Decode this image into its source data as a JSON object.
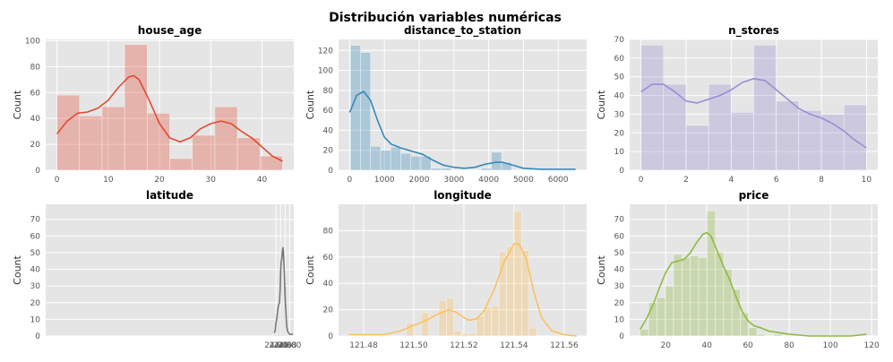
{
  "figure": {
    "title": "Distribución variables numéricas"
  },
  "colors": {
    "panel_bg": "#e5e5e5",
    "grid": "#ffffff",
    "tick_text": "#555555",
    "title_text": "#000000"
  },
  "chart_data": [
    {
      "type": "histogram",
      "title": "house_age",
      "xlabel": "",
      "ylabel": "Count",
      "color": "#e24a33",
      "xlim": [
        -2.2,
        46.2
      ],
      "ylim": [
        0,
        101
      ],
      "xticks": [
        0,
        10,
        20,
        30,
        40
      ],
      "yticks": [
        0,
        20,
        40,
        60,
        80,
        100
      ],
      "bins": [
        {
          "x0": 0,
          "x1": 4.4,
          "count": 58
        },
        {
          "x0": 4.4,
          "x1": 8.8,
          "count": 42
        },
        {
          "x0": 8.8,
          "x1": 13.2,
          "count": 49
        },
        {
          "x0": 13.2,
          "x1": 17.6,
          "count": 97
        },
        {
          "x0": 17.6,
          "x1": 22.0,
          "count": 44
        },
        {
          "x0": 22.0,
          "x1": 26.4,
          "count": 9
        },
        {
          "x0": 26.4,
          "x1": 30.8,
          "count": 27
        },
        {
          "x0": 30.8,
          "x1": 35.2,
          "count": 49
        },
        {
          "x0": 35.2,
          "x1": 39.6,
          "count": 25
        },
        {
          "x0": 39.6,
          "x1": 44.0,
          "count": 11
        }
      ],
      "kde": [
        [
          0,
          28
        ],
        [
          2,
          38
        ],
        [
          4,
          44
        ],
        [
          6,
          45
        ],
        [
          8,
          48
        ],
        [
          10,
          54
        ],
        [
          12,
          64
        ],
        [
          14,
          72
        ],
        [
          15,
          73
        ],
        [
          16,
          70
        ],
        [
          18,
          54
        ],
        [
          20,
          36
        ],
        [
          22,
          25
        ],
        [
          24,
          22
        ],
        [
          26,
          25
        ],
        [
          28,
          32
        ],
        [
          30,
          36
        ],
        [
          32,
          38
        ],
        [
          34,
          36
        ],
        [
          36,
          30
        ],
        [
          38,
          25
        ],
        [
          40,
          18
        ],
        [
          42,
          11
        ],
        [
          44,
          7
        ]
      ]
    },
    {
      "type": "histogram",
      "title": "distance_to_station",
      "xlabel": "",
      "ylabel": "Count",
      "color": "#348abd",
      "xlim": [
        -320,
        6820
      ],
      "ylim": [
        0,
        131
      ],
      "xticks": [
        0,
        1000,
        2000,
        3000,
        4000,
        5000,
        6000
      ],
      "yticks": [
        0,
        20,
        40,
        60,
        80,
        100,
        120
      ],
      "bins": [
        {
          "x0": 23,
          "x1": 312,
          "count": 125
        },
        {
          "x0": 312,
          "x1": 600,
          "count": 118
        },
        {
          "x0": 600,
          "x1": 890,
          "count": 24
        },
        {
          "x0": 890,
          "x1": 1180,
          "count": 20
        },
        {
          "x0": 1180,
          "x1": 1470,
          "count": 23
        },
        {
          "x0": 1470,
          "x1": 1760,
          "count": 17
        },
        {
          "x0": 1760,
          "x1": 2050,
          "count": 14
        },
        {
          "x0": 2050,
          "x1": 2340,
          "count": 14
        },
        {
          "x0": 2340,
          "x1": 2630,
          "count": 2
        },
        {
          "x0": 2630,
          "x1": 2920,
          "count": 2
        },
        {
          "x0": 2920,
          "x1": 3210,
          "count": 0
        },
        {
          "x0": 3210,
          "x1": 3500,
          "count": 0
        },
        {
          "x0": 3500,
          "x1": 3790,
          "count": 0
        },
        {
          "x0": 3790,
          "x1": 4080,
          "count": 2
        },
        {
          "x0": 4080,
          "x1": 4370,
          "count": 18
        },
        {
          "x0": 4370,
          "x1": 4660,
          "count": 8
        },
        {
          "x0": 4660,
          "x1": 6490,
          "count": 0
        }
      ],
      "kde": [
        [
          0,
          58
        ],
        [
          200,
          75
        ],
        [
          400,
          79
        ],
        [
          600,
          70
        ],
        [
          800,
          50
        ],
        [
          1000,
          33
        ],
        [
          1200,
          26
        ],
        [
          1500,
          22
        ],
        [
          1800,
          19
        ],
        [
          2100,
          16
        ],
        [
          2400,
          10
        ],
        [
          2700,
          5
        ],
        [
          3000,
          3
        ],
        [
          3300,
          2
        ],
        [
          3600,
          3
        ],
        [
          3900,
          6
        ],
        [
          4200,
          8
        ],
        [
          4400,
          8
        ],
        [
          4700,
          5
        ],
        [
          5000,
          2
        ],
        [
          5500,
          1
        ],
        [
          6000,
          1
        ],
        [
          6500,
          1
        ]
      ]
    },
    {
      "type": "histogram",
      "title": "n_stores",
      "xlabel": "",
      "ylabel": "Count",
      "color": "#988ed5",
      "xlim": [
        -0.5,
        10.5
      ],
      "ylim": [
        0,
        70
      ],
      "xticks": [
        0,
        2,
        4,
        6,
        8,
        10
      ],
      "yticks": [
        0,
        10,
        20,
        30,
        40,
        50,
        60,
        70
      ],
      "bins": [
        {
          "x0": 0,
          "x1": 1,
          "count": 67
        },
        {
          "x0": 1,
          "x1": 2,
          "count": 46
        },
        {
          "x0": 2,
          "x1": 3,
          "count": 24
        },
        {
          "x0": 3,
          "x1": 4,
          "count": 46
        },
        {
          "x0": 4,
          "x1": 5,
          "count": 31
        },
        {
          "x0": 5,
          "x1": 6,
          "count": 67
        },
        {
          "x0": 6,
          "x1": 7,
          "count": 37
        },
        {
          "x0": 7,
          "x1": 8,
          "count": 32
        },
        {
          "x0": 8,
          "x1": 9,
          "count": 30
        },
        {
          "x0": 9,
          "x1": 10,
          "count": 35
        }
      ],
      "kde": [
        [
          0,
          42
        ],
        [
          0.5,
          46
        ],
        [
          1,
          46
        ],
        [
          1.5,
          42
        ],
        [
          2,
          37
        ],
        [
          2.5,
          36
        ],
        [
          3,
          38
        ],
        [
          3.5,
          40
        ],
        [
          4,
          43
        ],
        [
          4.5,
          47
        ],
        [
          5,
          49
        ],
        [
          5.5,
          48
        ],
        [
          6,
          43
        ],
        [
          6.5,
          38
        ],
        [
          7,
          33
        ],
        [
          7.5,
          30
        ],
        [
          8,
          28
        ],
        [
          8.5,
          25
        ],
        [
          9,
          21
        ],
        [
          9.5,
          16
        ],
        [
          10,
          12
        ]
      ]
    },
    {
      "type": "histogram",
      "title": "latitude",
      "xlabel": "",
      "ylabel": "Count",
      "color": "#777777",
      "xlim": [
        23.928,
        25.018
      ],
      "ylim": [
        0,
        79
      ],
      "xticks": [
        24.94,
        24.96,
        24.98,
        25.0
      ],
      "yticks": [
        0,
        10,
        20,
        30,
        40,
        50,
        60,
        70
      ],
      "tick_labels": [
        "24.94",
        "24.96",
        "24.98",
        "25.00"
      ],
      "bins": [
        {
          "x0": 24.932,
          "x1": 24.935,
          "count": 1
        },
        {
          "x0": 24.935,
          "x1": 24.938,
          "count": 3
        },
        {
          "x0": 24.938,
          "x1": 24.941,
          "count": 14
        },
        {
          "x0": 24.941,
          "x1": 24.944,
          "count": 2
        },
        {
          "x0": 24.944,
          "x1": 24.947,
          "count": 2
        },
        {
          "x0": 24.947,
          "x1": 24.95,
          "count": 16
        },
        {
          "x0": 24.95,
          "x1": 24.953,
          "count": 22
        },
        {
          "x0": 24.953,
          "x1": 24.956,
          "count": 20
        },
        {
          "x0": 24.956,
          "x1": 24.959,
          "count": 15
        },
        {
          "x0": 24.959,
          "x1": 24.962,
          "count": 57
        },
        {
          "x0": 24.962,
          "x1": 24.965,
          "count": 39
        },
        {
          "x0": 24.965,
          "x1": 24.968,
          "count": 37
        },
        {
          "x0": 24.968,
          "x1": 24.971,
          "count": 75
        },
        {
          "x0": 24.971,
          "x1": 24.974,
          "count": 37
        },
        {
          "x0": 24.974,
          "x1": 24.977,
          "count": 49
        },
        {
          "x0": 24.977,
          "x1": 24.98,
          "count": 13
        },
        {
          "x0": 24.98,
          "x1": 24.983,
          "count": 10
        },
        {
          "x0": 24.983,
          "x1": 24.986,
          "count": 2
        }
      ],
      "kde": [
        [
          24.932,
          2
        ],
        [
          24.936,
          3
        ],
        [
          24.94,
          8
        ],
        [
          24.944,
          11
        ],
        [
          24.948,
          16
        ],
        [
          24.952,
          19
        ],
        [
          24.955,
          20
        ],
        [
          24.958,
          28
        ],
        [
          24.96,
          38
        ],
        [
          24.962,
          44
        ],
        [
          24.965,
          46
        ],
        [
          24.968,
          51
        ],
        [
          24.97,
          53
        ],
        [
          24.972,
          51
        ],
        [
          24.975,
          43
        ],
        [
          24.978,
          32
        ],
        [
          24.981,
          20
        ],
        [
          24.984,
          12
        ],
        [
          24.987,
          6
        ],
        [
          24.99,
          3
        ],
        [
          24.995,
          2
        ],
        [
          25.0,
          1
        ],
        [
          25.008,
          1
        ],
        [
          25.014,
          1
        ]
      ]
    },
    {
      "type": "histogram",
      "title": "longitude",
      "xlabel": "",
      "ylabel": "Count",
      "color": "#fbc15e",
      "xlim": [
        121.47,
        121.569
      ],
      "ylim": [
        0,
        100
      ],
      "xticks": [
        121.48,
        121.5,
        121.52,
        121.54,
        121.56
      ],
      "tick_labels": [
        "121.48",
        "121.50",
        "121.52",
        "121.54",
        "121.56"
      ],
      "yticks": [
        0,
        20,
        40,
        60,
        80
      ],
      "bins": [
        {
          "x0": 121.497,
          "x1": 121.5,
          "count": 10
        },
        {
          "x0": 121.503,
          "x1": 121.506,
          "count": 18
        },
        {
          "x0": 121.51,
          "x1": 121.513,
          "count": 27
        },
        {
          "x0": 121.513,
          "x1": 121.516,
          "count": 29
        },
        {
          "x0": 121.516,
          "x1": 121.519,
          "count": 4
        },
        {
          "x0": 121.519,
          "x1": 121.522,
          "count": 2
        },
        {
          "x0": 121.522,
          "x1": 121.525,
          "count": 2
        },
        {
          "x0": 121.525,
          "x1": 121.528,
          "count": 15
        },
        {
          "x0": 121.528,
          "x1": 121.531,
          "count": 22
        },
        {
          "x0": 121.531,
          "x1": 121.534,
          "count": 23
        },
        {
          "x0": 121.534,
          "x1": 121.537,
          "count": 64
        },
        {
          "x0": 121.537,
          "x1": 121.54,
          "count": 68
        },
        {
          "x0": 121.54,
          "x1": 121.543,
          "count": 95
        },
        {
          "x0": 121.543,
          "x1": 121.546,
          "count": 65
        },
        {
          "x0": 121.546,
          "x1": 121.549,
          "count": 6
        }
      ],
      "kde": [
        [
          121.474,
          1
        ],
        [
          121.48,
          1
        ],
        [
          121.488,
          1
        ],
        [
          121.495,
          4
        ],
        [
          121.5,
          8
        ],
        [
          121.505,
          12
        ],
        [
          121.51,
          17
        ],
        [
          121.514,
          20
        ],
        [
          121.517,
          18
        ],
        [
          121.52,
          14
        ],
        [
          121.522,
          12
        ],
        [
          121.525,
          13
        ],
        [
          121.528,
          19
        ],
        [
          121.532,
          35
        ],
        [
          121.536,
          56
        ],
        [
          121.54,
          70
        ],
        [
          121.542,
          70
        ],
        [
          121.545,
          58
        ],
        [
          121.548,
          33
        ],
        [
          121.551,
          14
        ],
        [
          121.555,
          4
        ],
        [
          121.56,
          1
        ],
        [
          121.565,
          0
        ]
      ]
    },
    {
      "type": "histogram",
      "title": "price",
      "xlabel": "",
      "ylabel": "Count",
      "color": "#8eba42",
      "xlim": [
        2.5,
        123
      ],
      "ylim": [
        0,
        79
      ],
      "xticks": [
        20,
        40,
        60,
        80,
        100,
        120
      ],
      "yticks": [
        0,
        10,
        20,
        30,
        40,
        50,
        60,
        70
      ],
      "bins": [
        {
          "x0": 7.6,
          "x1": 11.7,
          "count": 4
        },
        {
          "x0": 11.7,
          "x1": 15.7,
          "count": 20
        },
        {
          "x0": 15.7,
          "x1": 19.8,
          "count": 23
        },
        {
          "x0": 19.8,
          "x1": 23.8,
          "count": 30
        },
        {
          "x0": 23.8,
          "x1": 27.9,
          "count": 49
        },
        {
          "x0": 27.9,
          "x1": 31.9,
          "count": 47
        },
        {
          "x0": 31.9,
          "x1": 36.0,
          "count": 48
        },
        {
          "x0": 36.0,
          "x1": 40.0,
          "count": 47
        },
        {
          "x0": 40.0,
          "x1": 44.1,
          "count": 75
        },
        {
          "x0": 44.1,
          "x1": 48.1,
          "count": 50
        },
        {
          "x0": 48.1,
          "x1": 52.2,
          "count": 40
        },
        {
          "x0": 52.2,
          "x1": 56.2,
          "count": 28
        },
        {
          "x0": 56.2,
          "x1": 60.3,
          "count": 14
        },
        {
          "x0": 60.3,
          "x1": 64.3,
          "count": 5
        },
        {
          "x0": 64.3,
          "x1": 68.4,
          "count": 1
        },
        {
          "x0": 68.4,
          "x1": 72.4,
          "count": 0
        },
        {
          "x0": 72.4,
          "x1": 76.5,
          "count": 1
        }
      ],
      "kde": [
        [
          7.6,
          4
        ],
        [
          11,
          11
        ],
        [
          14,
          19
        ],
        [
          17,
          29
        ],
        [
          20,
          38
        ],
        [
          23,
          44
        ],
        [
          26,
          45
        ],
        [
          29,
          46
        ],
        [
          32,
          50
        ],
        [
          35,
          56
        ],
        [
          38,
          61
        ],
        [
          40,
          62
        ],
        [
          42,
          60
        ],
        [
          45,
          51
        ],
        [
          48,
          42
        ],
        [
          51,
          34
        ],
        [
          54,
          24
        ],
        [
          57,
          15
        ],
        [
          60,
          9
        ],
        [
          63,
          6
        ],
        [
          66,
          5
        ],
        [
          70,
          3
        ],
        [
          75,
          2
        ],
        [
          80,
          1
        ],
        [
          90,
          0
        ],
        [
          100,
          0
        ],
        [
          110,
          0
        ],
        [
          117.5,
          1
        ]
      ]
    }
  ]
}
